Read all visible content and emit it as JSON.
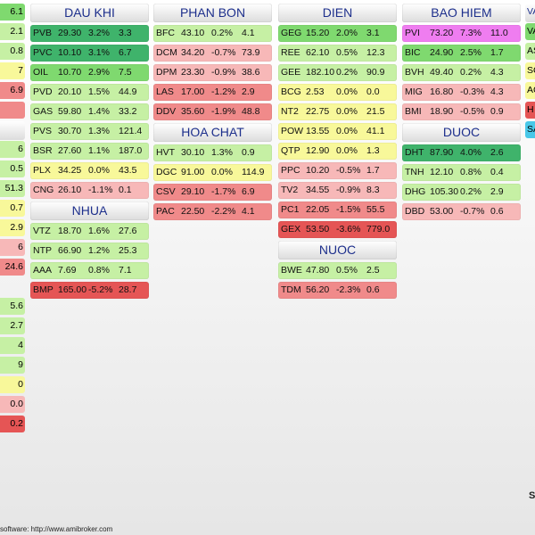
{
  "colors": {
    "up_strong": "#3fb36b",
    "up": "#7fd96f",
    "up_light": "#c6f0a4",
    "flat": "#f8f89a",
    "down_light": "#f7b8b8",
    "down": "#f08a8a",
    "down_strong": "#e55555",
    "ceiling": "#ef7df0",
    "floor": "#49c8e8"
  },
  "groups": [
    {
      "id": "dau-khi",
      "title": "DAU KHI",
      "rows": [
        {
          "sym": "PVB",
          "price": "29.30",
          "chg": "3.2%",
          "vol": "3.3",
          "tone": "up_strong"
        },
        {
          "sym": "PVC",
          "price": "10.10",
          "chg": "3.1%",
          "vol": "6.7",
          "tone": "up_strong"
        },
        {
          "sym": "OIL",
          "price": "10.70",
          "chg": "2.9%",
          "vol": "7.5",
          "tone": "up"
        },
        {
          "sym": "PVD",
          "price": "20.10",
          "chg": "1.5%",
          "vol": "44.9",
          "tone": "up_light"
        },
        {
          "sym": "GAS",
          "price": "59.80",
          "chg": "1.4%",
          "vol": "33.2",
          "tone": "up_light"
        },
        {
          "sym": "PVS",
          "price": "30.70",
          "chg": "1.3%",
          "vol": "121.4",
          "tone": "up_light"
        },
        {
          "sym": "BSR",
          "price": "27.60",
          "chg": "1.1%",
          "vol": "187.0",
          "tone": "up_light"
        },
        {
          "sym": "PLX",
          "price": "34.25",
          "chg": "0.0%",
          "vol": "43.5",
          "tone": "flat"
        },
        {
          "sym": "CNG",
          "price": "26.10",
          "chg": "-1.1%",
          "vol": "0.1",
          "tone": "down_light"
        }
      ]
    },
    {
      "id": "nhua",
      "title": "NHUA",
      "rows": [
        {
          "sym": "VTZ",
          "price": "18.70",
          "chg": "1.6%",
          "vol": "27.6",
          "tone": "up_light"
        },
        {
          "sym": "NTP",
          "price": "66.90",
          "chg": "1.2%",
          "vol": "25.3",
          "tone": "up_light"
        },
        {
          "sym": "AAA",
          "price": "7.69",
          "chg": "0.8%",
          "vol": "7.1",
          "tone": "up_light"
        },
        {
          "sym": "BMP",
          "price": "165.00",
          "chg": "-5.2%",
          "vol": "28.7",
          "tone": "down_strong"
        }
      ]
    },
    {
      "id": "phan-bon",
      "title": "PHAN BON",
      "rows": [
        {
          "sym": "BFC",
          "price": "43.10",
          "chg": "0.2%",
          "vol": "4.1",
          "tone": "up_light"
        },
        {
          "sym": "DCM",
          "price": "34.20",
          "chg": "-0.7%",
          "vol": "73.9",
          "tone": "down_light"
        },
        {
          "sym": "DPM",
          "price": "23.30",
          "chg": "-0.9%",
          "vol": "38.6",
          "tone": "down_light"
        },
        {
          "sym": "LAS",
          "price": "17.00",
          "chg": "-1.2%",
          "vol": "2.9",
          "tone": "down"
        },
        {
          "sym": "DDV",
          "price": "35.60",
          "chg": "-1.9%",
          "vol": "48.8",
          "tone": "down"
        }
      ]
    },
    {
      "id": "hoa-chat",
      "title": "HOA CHAT",
      "rows": [
        {
          "sym": "HVT",
          "price": "30.10",
          "chg": "1.3%",
          "vol": "0.9",
          "tone": "up_light"
        },
        {
          "sym": "DGC",
          "price": "91.00",
          "chg": "0.0%",
          "vol": "114.9",
          "tone": "flat"
        },
        {
          "sym": "CSV",
          "price": "29.10",
          "chg": "-1.7%",
          "vol": "6.9",
          "tone": "down"
        },
        {
          "sym": "PAC",
          "price": "22.50",
          "chg": "-2.2%",
          "vol": "4.1",
          "tone": "down"
        }
      ]
    },
    {
      "id": "dien",
      "title": "DIEN",
      "rows": [
        {
          "sym": "GEG",
          "price": "15.20",
          "chg": "2.0%",
          "vol": "3.1",
          "tone": "up"
        },
        {
          "sym": "REE",
          "price": "62.10",
          "chg": "0.5%",
          "vol": "12.3",
          "tone": "up_light"
        },
        {
          "sym": "GEE",
          "price": "182.10",
          "chg": "0.2%",
          "vol": "90.9",
          "tone": "up_light"
        },
        {
          "sym": "BCG",
          "price": "2.53",
          "chg": "0.0%",
          "vol": "0.0",
          "tone": "flat"
        },
        {
          "sym": "NT2",
          "price": "22.75",
          "chg": "0.0%",
          "vol": "21.5",
          "tone": "flat"
        },
        {
          "sym": "POW",
          "price": "13.55",
          "chg": "0.0%",
          "vol": "41.1",
          "tone": "flat"
        },
        {
          "sym": "QTP",
          "price": "12.90",
          "chg": "0.0%",
          "vol": "1.3",
          "tone": "flat"
        },
        {
          "sym": "PPC",
          "price": "10.20",
          "chg": "-0.5%",
          "vol": "1.7",
          "tone": "down_light"
        },
        {
          "sym": "TV2",
          "price": "34.55",
          "chg": "-0.9%",
          "vol": "8.3",
          "tone": "down_light"
        },
        {
          "sym": "PC1",
          "price": "22.05",
          "chg": "-1.5%",
          "vol": "55.5",
          "tone": "down"
        },
        {
          "sym": "GEX",
          "price": "53.50",
          "chg": "-3.6%",
          "vol": "779.0",
          "tone": "down_strong"
        }
      ]
    },
    {
      "id": "nuoc",
      "title": "NUOC",
      "rows": [
        {
          "sym": "BWE",
          "price": "47.80",
          "chg": "0.5%",
          "vol": "2.5",
          "tone": "up_light"
        },
        {
          "sym": "TDM",
          "price": "56.20",
          "chg": "-2.3%",
          "vol": "0.6",
          "tone": "down"
        }
      ]
    },
    {
      "id": "bao-hiem",
      "title": "BAO HIEM",
      "rows": [
        {
          "sym": "PVI",
          "price": "73.20",
          "chg": "7.3%",
          "vol": "11.0",
          "tone": "ceiling"
        },
        {
          "sym": "BIC",
          "price": "24.90",
          "chg": "2.5%",
          "vol": "1.7",
          "tone": "up"
        },
        {
          "sym": "BVH",
          "price": "49.40",
          "chg": "0.2%",
          "vol": "4.3",
          "tone": "up_light"
        },
        {
          "sym": "MIG",
          "price": "16.80",
          "chg": "-0.3%",
          "vol": "4.3",
          "tone": "down_light"
        },
        {
          "sym": "BMI",
          "price": "18.90",
          "chg": "-0.5%",
          "vol": "0.9",
          "tone": "down_light"
        }
      ]
    },
    {
      "id": "duoc",
      "title": "DUOC",
      "rows": [
        {
          "sym": "DHT",
          "price": "87.90",
          "chg": "4.0%",
          "vol": "2.6",
          "tone": "up_strong"
        },
        {
          "sym": "TNH",
          "price": "12.10",
          "chg": "0.8%",
          "vol": "0.4",
          "tone": "up_light"
        },
        {
          "sym": "DHG",
          "price": "105.30",
          "chg": "0.2%",
          "vol": "2.9",
          "tone": "up_light"
        },
        {
          "sym": "DBD",
          "price": "53.00",
          "chg": "-0.7%",
          "vol": "0.6",
          "tone": "down_light"
        }
      ]
    }
  ],
  "left_fragments": [
    {
      "text": "6.1",
      "tone": "up"
    },
    {
      "text": "2.1",
      "tone": "up_light"
    },
    {
      "text": "0.8",
      "tone": "up_light"
    },
    {
      "text": "7",
      "tone": "flat"
    },
    {
      "text": "6.9",
      "tone": "down"
    },
    {
      "text": "",
      "tone": "down"
    },
    {
      "text": "",
      "header": true
    },
    {
      "text": "6",
      "tone": "up_light"
    },
    {
      "text": "0.5",
      "tone": "up_light"
    },
    {
      "text": "51.3",
      "tone": "up_light"
    },
    {
      "text": "0.7",
      "tone": "flat"
    },
    {
      "text": "2.9",
      "tone": "flat"
    },
    {
      "text": "6",
      "tone": "down_light"
    },
    {
      "text": "24.6",
      "tone": "down"
    },
    {
      "text": "",
      "blank": true
    },
    {
      "text": "5.6",
      "tone": "up_light"
    },
    {
      "text": "2.7",
      "tone": "up_light"
    },
    {
      "text": "4",
      "tone": "up_light"
    },
    {
      "text": "9",
      "tone": "up_light"
    },
    {
      "text": "0",
      "tone": "flat"
    },
    {
      "text": "0.0",
      "tone": "down_light"
    },
    {
      "text": "0.2",
      "tone": "down_strong"
    }
  ],
  "right_fragments": [
    {
      "text": "VA",
      "header": true
    },
    {
      "text": "VA",
      "tone": "up"
    },
    {
      "text": "AS",
      "tone": "up_light"
    },
    {
      "text": "SC",
      "tone": "flat"
    },
    {
      "text": "AG",
      "tone": "flat"
    },
    {
      "text": "H",
      "tone": "down_strong"
    },
    {
      "text": "SA",
      "tone": "floor"
    }
  ],
  "footer": {
    "text": "software: http://www.amibroker.com"
  },
  "corner_badge": "S"
}
